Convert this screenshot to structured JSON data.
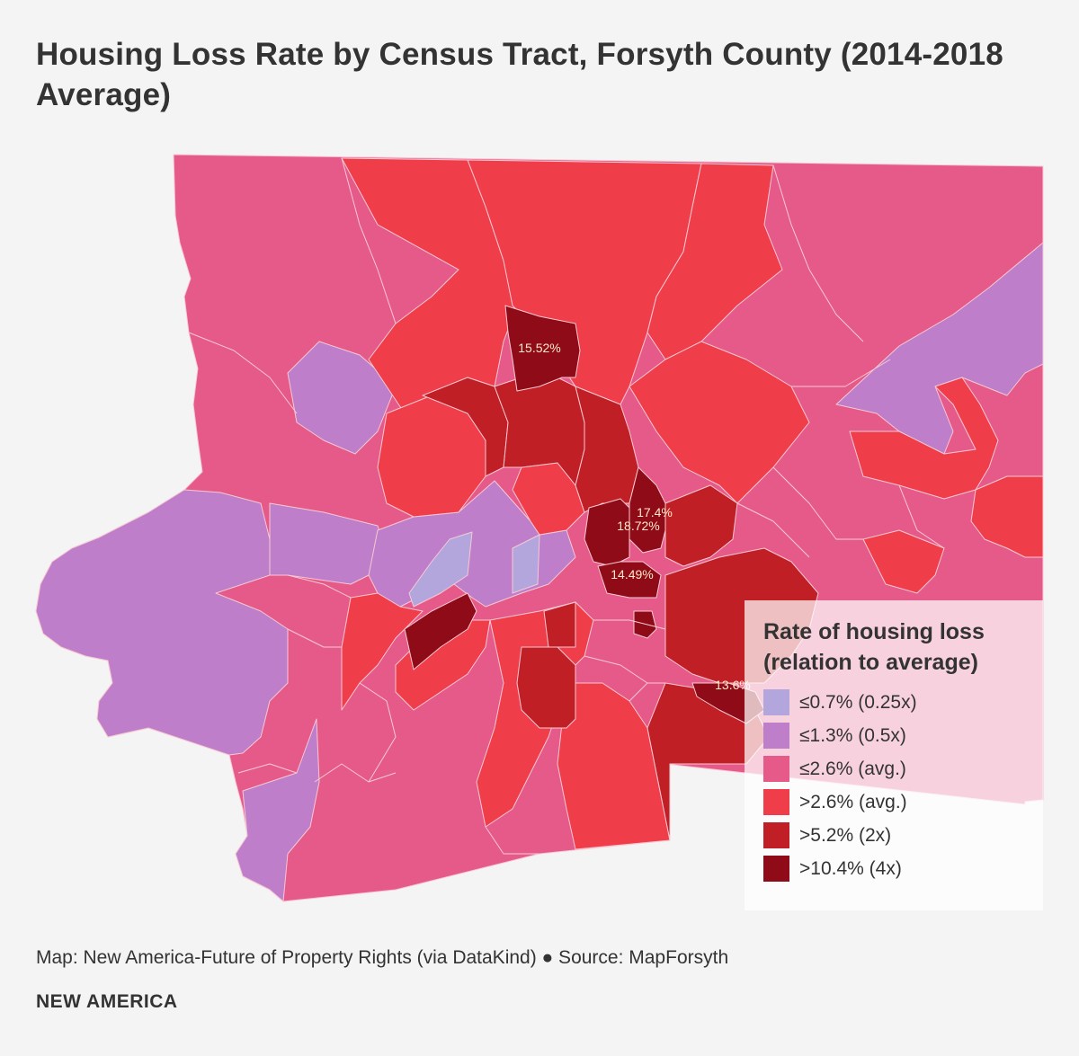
{
  "title": "Housing Loss Rate by Census Tract, Forsyth County (2014-2018 Average)",
  "legend": {
    "title": "Rate of housing loss (relation to average)",
    "items": [
      {
        "label": "≤0.7% (0.25x)",
        "color": "#b3a6dc"
      },
      {
        "label": "≤1.3% (0.5x)",
        "color": "#be7ec9"
      },
      {
        "label": "≤2.6% (avg.)",
        "color": "#e65a8a"
      },
      {
        "label": ">2.6% (avg.)",
        "color": "#ef3d4a"
      },
      {
        "label": ">5.2% (2x)",
        "color": "#c11f26"
      },
      {
        "label": ">10.4% (4x)",
        "color": "#8f0b17"
      }
    ]
  },
  "annotations": [
    {
      "label": "15.52%"
    },
    {
      "label": "17.4%"
    },
    {
      "label": "18.72%"
    },
    {
      "label": "14.49%"
    },
    {
      "label": "13.6%"
    }
  ],
  "credit": "Map: New America-Future of Property Rights (via DataKind) ● Source: MapForsyth",
  "brand": "NEW AMERICA"
}
